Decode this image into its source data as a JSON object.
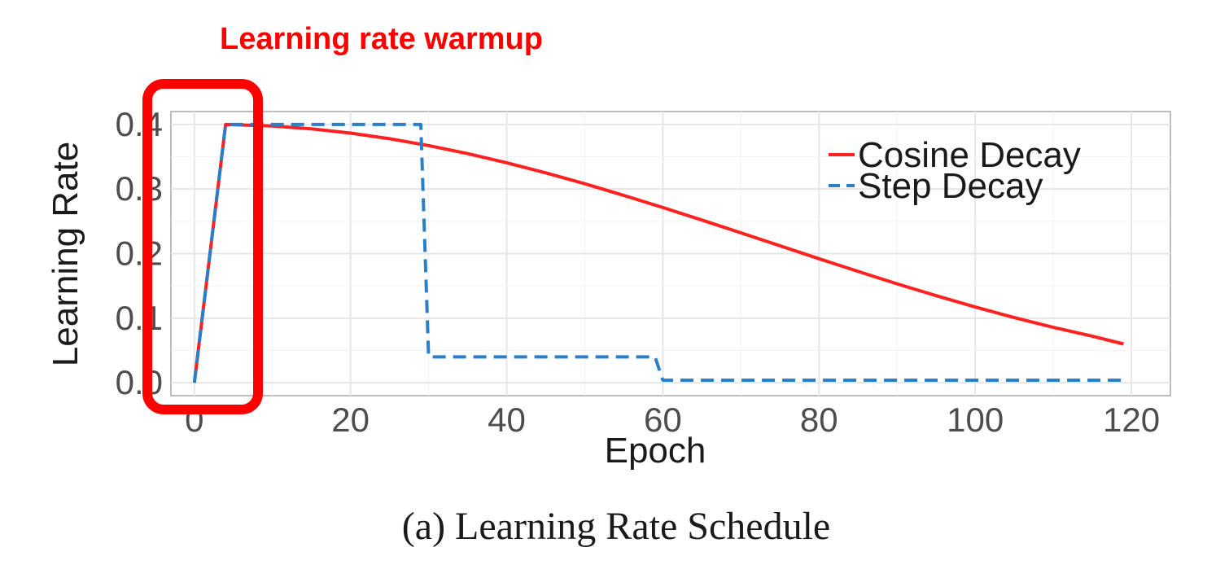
{
  "annotation": {
    "label": "Learning rate warmup",
    "color": "#ff0000"
  },
  "caption": "(a) Learning Rate Schedule",
  "chart_data": {
    "type": "line",
    "title": "",
    "xlabel": "Epoch",
    "ylabel": "Learning Rate",
    "xlim": [
      -3,
      125
    ],
    "ylim": [
      -0.02,
      0.42
    ],
    "x_ticks": [
      0,
      20,
      40,
      60,
      80,
      100,
      120
    ],
    "x_tick_labels": [
      "0",
      "20",
      "40",
      "60",
      "80",
      "100",
      "120"
    ],
    "y_ticks": [
      0.0,
      0.1,
      0.2,
      0.3,
      0.4
    ],
    "y_tick_labels": [
      "0.0",
      "0.1",
      "0.2",
      "0.3",
      "0.4"
    ],
    "grid": true,
    "legend_position": "top-right",
    "series": [
      {
        "name": "Cosine Decay",
        "color": "#ff2020",
        "style": "solid",
        "x": [
          0,
          4,
          10,
          15,
          20,
          25,
          30,
          35,
          40,
          45,
          50,
          55,
          60,
          65,
          70,
          75,
          80,
          85,
          90,
          95,
          100,
          105,
          110,
          115,
          119
        ],
        "y": [
          0.0,
          0.4,
          0.3976,
          0.3932,
          0.3866,
          0.3779,
          0.3673,
          0.3548,
          0.3407,
          0.3251,
          0.3082,
          0.2902,
          0.2714,
          0.2519,
          0.2321,
          0.2121,
          0.1921,
          0.1724,
          0.1532,
          0.1348,
          0.1173,
          0.1009,
          0.0858,
          0.0722,
          0.0601
        ]
      },
      {
        "name": "Step Decay",
        "color": "#2a7fc9",
        "style": "dashed",
        "x": [
          0,
          4,
          29,
          30,
          59,
          60,
          119
        ],
        "y": [
          0.0,
          0.4,
          0.4,
          0.04,
          0.04,
          0.004,
          0.004
        ]
      }
    ]
  }
}
